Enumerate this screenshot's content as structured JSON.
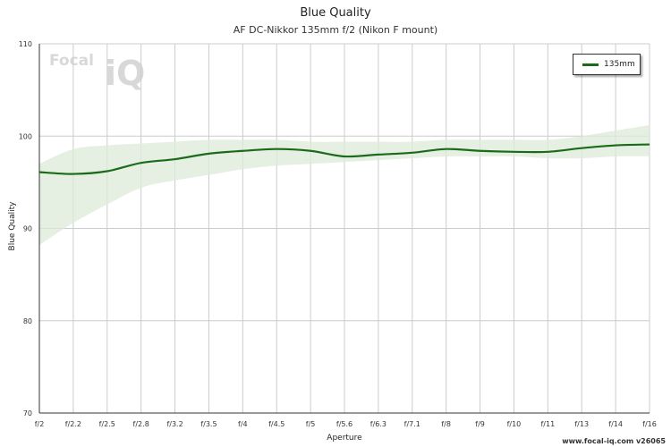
{
  "chart_data": {
    "type": "line",
    "title": "Blue Quality",
    "subtitle": "AF DC-Nikkor 135mm f/2 (Nikon F mount)",
    "xlabel": "Aperture",
    "ylabel": "Blue Quality",
    "categories": [
      "f/2",
      "f/2.2",
      "f/2.5",
      "f/2.8",
      "f/3.2",
      "f/3.5",
      "f/4",
      "f/4.5",
      "f/5",
      "f/5.6",
      "f/6.3",
      "f/7.1",
      "f/8",
      "f/9",
      "f/10",
      "f/11",
      "f/13",
      "f/14",
      "f/16"
    ],
    "ylim": [
      70,
      110
    ],
    "yticks": [
      70,
      80,
      90,
      100,
      110
    ],
    "grid": true,
    "legend_position": "top-right",
    "series": [
      {
        "name": "135mm",
        "color": "#1b6b1b",
        "values": [
          96.1,
          95.9,
          96.2,
          97.1,
          97.5,
          98.1,
          98.4,
          98.6,
          98.4,
          97.8,
          98.0,
          98.2,
          98.6,
          98.4,
          98.3,
          98.3,
          98.7,
          99.0,
          99.1
        ],
        "band_upper": [
          97.0,
          98.6,
          99.0,
          99.2,
          99.4,
          99.6,
          99.6,
          99.6,
          99.4,
          99.4,
          99.4,
          99.4,
          99.6,
          99.6,
          99.6,
          99.6,
          100.0,
          100.6,
          101.2
        ],
        "band_lower": [
          88.2,
          90.6,
          92.6,
          94.4,
          95.2,
          95.8,
          96.4,
          96.8,
          97.0,
          97.2,
          97.4,
          97.6,
          97.8,
          97.8,
          97.8,
          97.6,
          97.6,
          97.8,
          97.8
        ]
      }
    ]
  },
  "colors": {
    "line": "#1b6b1b",
    "band": "#dcebd9",
    "grid": "#cccccc",
    "axis": "#333333"
  },
  "logo": {
    "text_focal": "Focal",
    "text_iq": "iQ"
  },
  "footer": {
    "text": "www.focal-iq.com  v26065"
  }
}
